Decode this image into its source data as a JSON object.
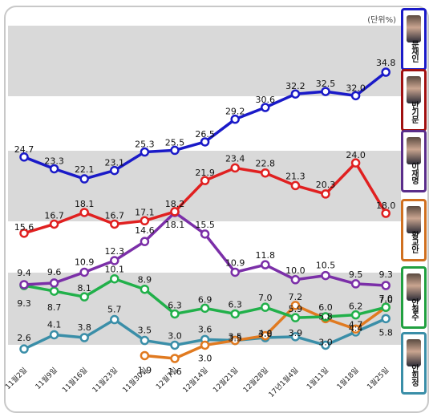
{
  "unit_label": "(단위%)",
  "colors": {
    "moon": "#1a1ac8",
    "ban": "#e02020",
    "lee": "#7b2fa8",
    "hwang": "#e07a20",
    "ahn_cs": "#21b04a",
    "ahn_hj": "#3a8ea8",
    "band": "#d9d9d9"
  },
  "candidates": [
    {
      "key": "moon",
      "name": "문재인",
      "border": "#1a1ac8"
    },
    {
      "key": "ban",
      "name": "반기문",
      "border": "#a01010"
    },
    {
      "key": "lee",
      "name": "이재명",
      "border": "#5a2d8a"
    },
    {
      "key": "hwang",
      "name": "황교안",
      "border": "#d07020"
    },
    {
      "key": "ahn_cs",
      "name": "안철수",
      "border": "#21a040"
    },
    {
      "key": "ahn_hj",
      "name": "안희정",
      "border": "#3a8ea8"
    }
  ],
  "chart_data": {
    "type": "line",
    "categories": [
      "11월2일",
      "11월9일",
      "11월16일",
      "11월23일",
      "11월30일",
      "12월7일",
      "12월14일",
      "12월21일",
      "12월28일",
      "17년1월4일",
      "1월11일",
      "1월18일",
      "1월25일"
    ],
    "ylabel": "(단위%)",
    "series": [
      {
        "key": "moon",
        "name": "문재인",
        "values": [
          24.7,
          23.3,
          22.1,
          23.1,
          25.3,
          25.5,
          26.5,
          29.2,
          30.6,
          32.2,
          32.5,
          32.0,
          34.8
        ]
      },
      {
        "key": "ban",
        "name": "반기문",
        "values": [
          15.6,
          16.7,
          18.1,
          16.7,
          17.1,
          18.2,
          21.9,
          23.4,
          22.8,
          21.3,
          20.3,
          24.0,
          18.0
        ]
      },
      {
        "key": "lee",
        "name": "이재명",
        "values": [
          9.4,
          9.6,
          10.9,
          12.3,
          14.6,
          18.1,
          15.5,
          10.9,
          11.8,
          10.0,
          10.5,
          9.5,
          9.3
        ]
      },
      {
        "key": "ahn_cs",
        "name": "안철수",
        "values": [
          9.3,
          8.7,
          8.1,
          10.1,
          8.9,
          6.3,
          6.9,
          6.3,
          7.0,
          5.9,
          6.0,
          6.2,
          7.0
        ]
      },
      {
        "key": "ahn_hj",
        "name": "안희정",
        "values": [
          2.6,
          4.1,
          3.8,
          5.7,
          3.5,
          3.0,
          3.6,
          3.5,
          3.8,
          3.9,
          3.0,
          4.4,
          5.8
        ]
      },
      {
        "key": "hwang",
        "name": "황교안",
        "values": [
          null,
          null,
          null,
          null,
          1.9,
          1.6,
          3.0,
          3.5,
          4.0,
          7.2,
          5.8,
          4.7,
          7.0
        ]
      }
    ]
  }
}
